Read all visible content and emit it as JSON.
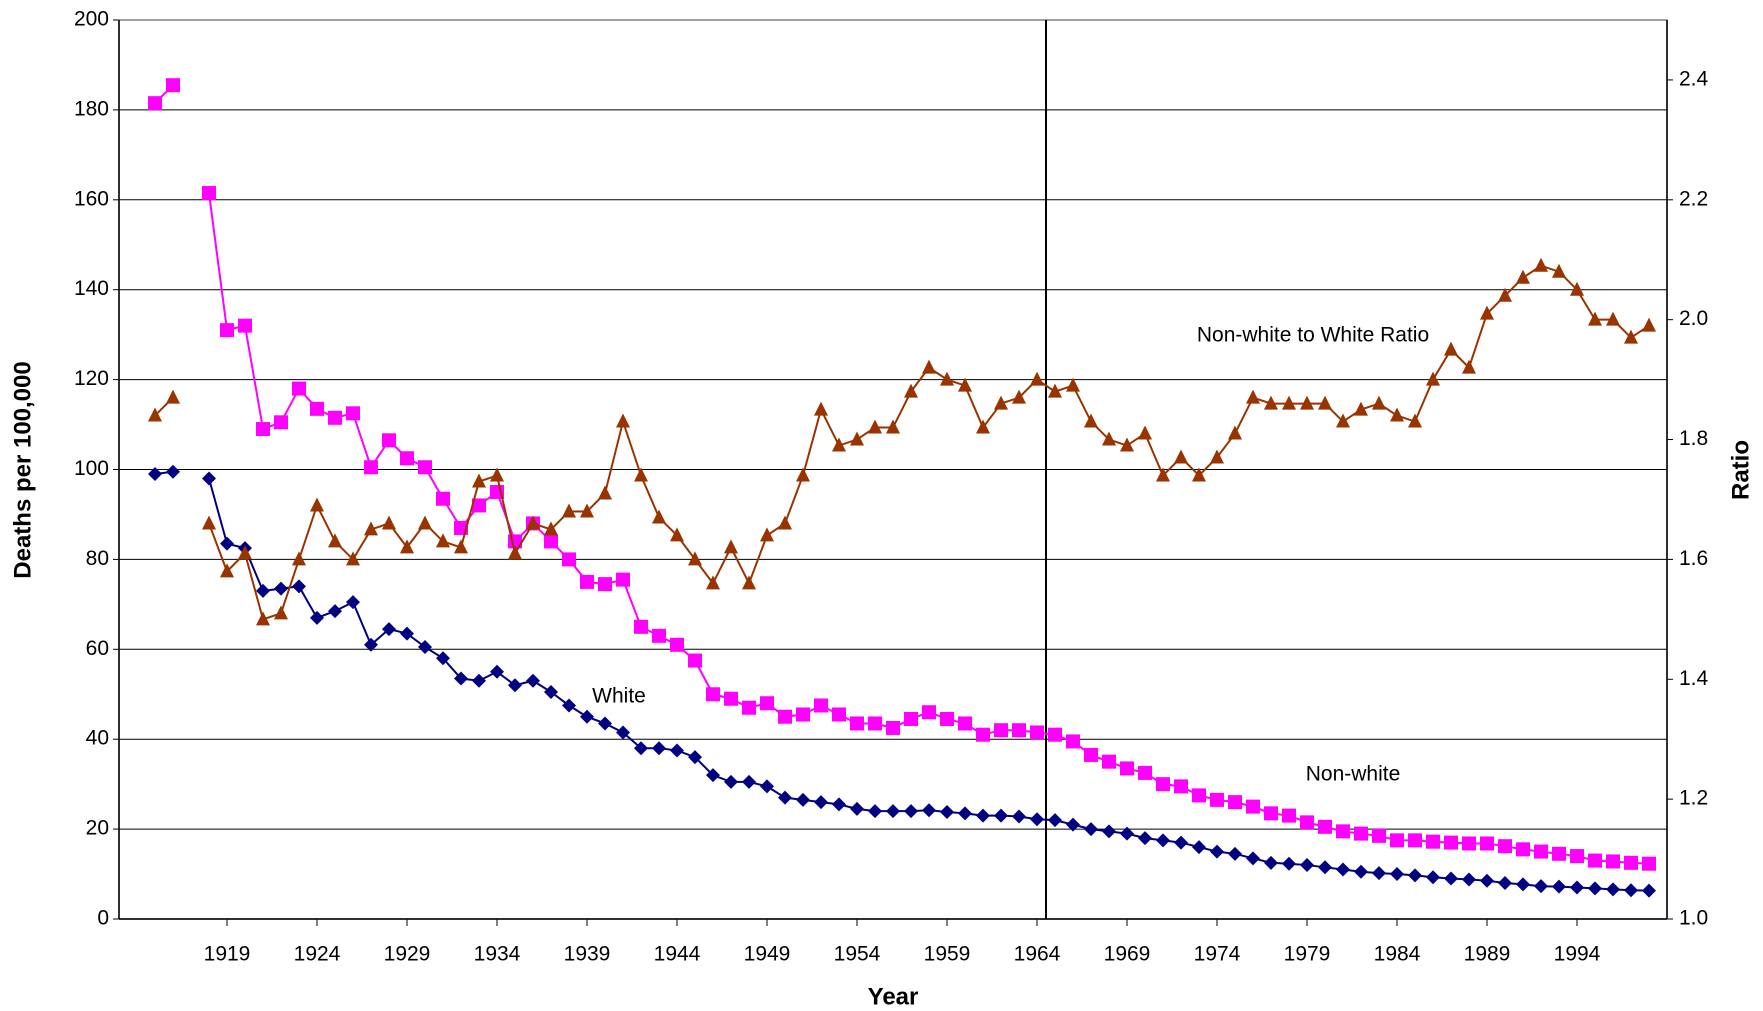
{
  "chart_data": {
    "type": "line",
    "x_label": "Year",
    "y_label": "Deaths  per 100,000",
    "y2_label": "Ratio",
    "x": [
      1915,
      1916,
      1917,
      1918,
      1919,
      1920,
      1921,
      1922,
      1923,
      1924,
      1925,
      1926,
      1927,
      1928,
      1929,
      1930,
      1931,
      1932,
      1933,
      1934,
      1935,
      1936,
      1937,
      1938,
      1939,
      1940,
      1941,
      1942,
      1943,
      1944,
      1945,
      1946,
      1947,
      1948,
      1949,
      1950,
      1951,
      1952,
      1953,
      1954,
      1955,
      1956,
      1957,
      1958,
      1959,
      1960,
      1961,
      1962,
      1963,
      1964,
      1965,
      1966,
      1967,
      1968,
      1969,
      1970,
      1971,
      1972,
      1973,
      1974,
      1975,
      1976,
      1977,
      1978,
      1979,
      1980,
      1981,
      1982,
      1983,
      1984,
      1985,
      1986,
      1987,
      1988,
      1989,
      1990,
      1991,
      1992,
      1993,
      1994,
      1995,
      1996,
      1997,
      1998
    ],
    "xlim": [
      1913,
      1999
    ],
    "xticks": [
      1919,
      1924,
      1929,
      1934,
      1939,
      1944,
      1949,
      1954,
      1959,
      1964,
      1969,
      1974,
      1979,
      1984,
      1989,
      1994
    ],
    "ylim": [
      0,
      200
    ],
    "yticks": [
      0,
      20,
      40,
      60,
      80,
      100,
      120,
      140,
      160,
      180,
      200
    ],
    "y2lim": [
      1.0,
      2.5
    ],
    "y2ticks": [
      {
        "value": 1.0,
        "label": "1.0"
      },
      1.2,
      1.4,
      1.6,
      1.8,
      {
        "value": 2.0,
        "label": "2.0"
      },
      2.2,
      2.4
    ],
    "grid": true,
    "reference_line_x": 1964.5,
    "series": [
      {
        "name": "White",
        "color": "#000080",
        "marker": "diamond",
        "values": [
          99,
          99.5,
          null,
          98,
          83.5,
          82.5,
          73,
          73.5,
          74,
          67,
          68.5,
          70.5,
          61,
          64.5,
          63.5,
          60.5,
          58,
          53.5,
          53,
          55,
          52,
          53,
          50.5,
          47.5,
          45,
          43.5,
          41.5,
          38,
          38,
          37.5,
          36,
          32,
          30.5,
          30.5,
          29.5,
          27,
          26.5,
          26,
          25.5,
          24.5,
          24,
          24,
          24,
          24.2,
          23.8,
          23.5,
          23,
          23,
          22.8,
          22.2,
          22,
          21,
          20,
          19.5,
          19,
          18,
          17.5,
          17,
          16,
          15,
          14.5,
          13.5,
          12.5,
          12.3,
          12,
          11.5,
          11,
          10.5,
          10.2,
          10,
          9.7,
          9.3,
          9,
          8.8,
          8.5,
          8,
          7.7,
          7.3,
          7.2,
          7,
          6.8,
          6.6,
          6.4,
          6.3
        ]
      },
      {
        "name": "Non-white",
        "color": "#ff00ff",
        "marker": "square",
        "values": [
          181.5,
          185.5,
          null,
          161.5,
          131,
          132,
          109,
          110.5,
          118,
          113.5,
          111.5,
          112.5,
          100.5,
          106.5,
          102.5,
          100.5,
          93.5,
          87,
          92,
          95,
          84,
          88,
          84,
          80,
          75,
          74.5,
          75.5,
          65,
          63,
          61,
          57.5,
          50,
          49,
          47,
          48,
          45,
          45.5,
          47.5,
          45.5,
          43.5,
          43.5,
          42.5,
          44.5,
          46,
          44.5,
          43.5,
          41,
          42,
          42,
          41.5,
          41,
          39.5,
          36.5,
          35,
          33.5,
          32.5,
          30,
          29.5,
          27.5,
          26.5,
          26,
          25,
          23.5,
          23,
          21.5,
          20.5,
          19.5,
          19,
          18.5,
          17.5,
          17.5,
          17.2,
          17,
          16.8,
          16.8,
          16.2,
          15.5,
          15,
          14.5,
          14,
          13,
          12.8,
          12.5,
          12.3
        ]
      },
      {
        "name": "Non-white to White Ratio",
        "color": "#993300",
        "marker": "triangle",
        "axis": "y2",
        "values": [
          1.84,
          1.87,
          null,
          1.66,
          1.58,
          1.61,
          1.5,
          1.51,
          1.6,
          1.69,
          1.63,
          1.6,
          1.65,
          1.66,
          1.62,
          1.66,
          1.63,
          1.62,
          1.73,
          1.74,
          1.61,
          1.66,
          1.65,
          1.68,
          1.68,
          1.71,
          1.83,
          1.74,
          1.67,
          1.64,
          1.6,
          1.56,
          1.62,
          1.56,
          1.64,
          1.66,
          1.74,
          1.85,
          1.79,
          1.8,
          1.82,
          1.82,
          1.88,
          1.92,
          1.9,
          1.89,
          1.82,
          1.86,
          1.87,
          1.9,
          1.88,
          1.89,
          1.83,
          1.8,
          1.79,
          1.81,
          1.74,
          1.77,
          1.74,
          1.77,
          1.81,
          1.87,
          1.86,
          1.86,
          1.86,
          1.86,
          1.83,
          1.85,
          1.86,
          1.84,
          1.83,
          1.9,
          1.95,
          1.92,
          2.01,
          2.04,
          2.07,
          2.09,
          2.08,
          2.05,
          2.0,
          2.0,
          1.97,
          1.99
        ]
      }
    ]
  }
}
